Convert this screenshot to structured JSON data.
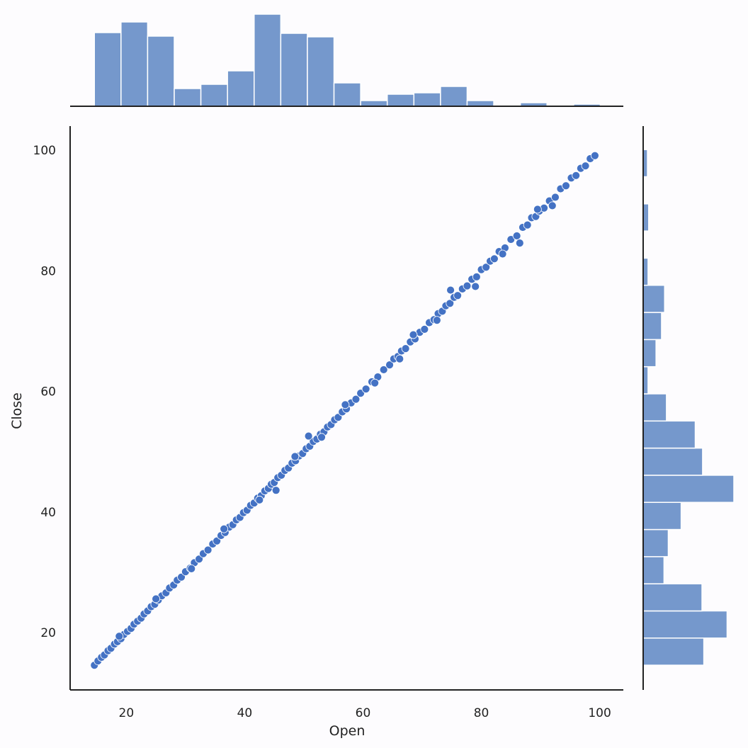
{
  "chart_data": {
    "type": "scatter",
    "subtype": "jointplot",
    "xlabel": "Open",
    "ylabel": "Close",
    "xlim": [
      10.5,
      104
    ],
    "ylim": [
      10.5,
      104
    ],
    "xticks": [
      20,
      40,
      60,
      80,
      100
    ],
    "yticks": [
      20,
      40,
      60,
      80,
      100
    ],
    "grid": false,
    "colors": {
      "points": "#4472c4",
      "point_edge": "#ffffff",
      "bars": "#7598cc",
      "bar_edge": "#ffffff",
      "axis": "#222222",
      "background": "#fdfcfe"
    },
    "series": [
      {
        "x": [
          14.6,
          15.2,
          15.8,
          16.3,
          16.9,
          17.4,
          18.0,
          18.5,
          19.1,
          19.6,
          20.2,
          20.8,
          21.3,
          21.9,
          22.5,
          23.0,
          23.6,
          24.2,
          24.8,
          25.4,
          26.0,
          26.7,
          27.3,
          28.0,
          28.6,
          29.3,
          30.0,
          30.8,
          31.5,
          32.3,
          33.0,
          33.8,
          34.6,
          35.3,
          36.0,
          36.7,
          37.4,
          38.0,
          38.6,
          39.2,
          39.8,
          40.4,
          41.0,
          41.6,
          42.2,
          42.8,
          43.4,
          44.0,
          44.5,
          45.0,
          45.6,
          46.2,
          46.8,
          47.4,
          48.0,
          48.6,
          49.2,
          49.8,
          50.4,
          51.0,
          51.6,
          52.2,
          52.8,
          53.4,
          54.0,
          54.6,
          55.2,
          55.8,
          56.5,
          57.2,
          58.0,
          58.8,
          59.6,
          60.5,
          61.5,
          62.5,
          63.5,
          64.5,
          65.2,
          65.9,
          66.5,
          67.2,
          68.0,
          68.8,
          69.6,
          70.4,
          71.2,
          72.0,
          72.7,
          73.4,
          74.0,
          74.7,
          75.4,
          76.0,
          76.8,
          77.6,
          78.4,
          79.2,
          80.0,
          80.8,
          81.5,
          82.2,
          83.0,
          84.0,
          85.0,
          86.0,
          87.0,
          87.8,
          88.5,
          89.2,
          89.8,
          90.6,
          91.5,
          92.5,
          93.4,
          94.3,
          95.2,
          96.0,
          96.8,
          97.6,
          98.4,
          99.2,
          18.8,
          25.0,
          31.0,
          36.5,
          42.5,
          48.5,
          53.0,
          57.0,
          62.0,
          68.5,
          72.5,
          74.8,
          79.0,
          83.6,
          86.5,
          89.5,
          92.0,
          45.3,
          50.8,
          66.2
        ],
        "y": [
          14.6,
          15.3,
          15.9,
          16.3,
          17.0,
          17.4,
          18.1,
          18.5,
          19.0,
          19.7,
          20.2,
          20.7,
          21.4,
          21.9,
          22.4,
          23.1,
          23.6,
          24.3,
          24.7,
          25.4,
          26.1,
          26.6,
          27.4,
          27.9,
          28.7,
          29.2,
          30.1,
          30.7,
          31.6,
          32.2,
          33.1,
          33.7,
          34.7,
          35.2,
          36.1,
          36.6,
          37.5,
          37.9,
          38.7,
          39.1,
          39.9,
          40.3,
          41.1,
          41.5,
          42.3,
          42.7,
          43.5,
          43.9,
          44.6,
          44.9,
          45.7,
          46.1,
          46.9,
          47.3,
          48.1,
          48.5,
          49.3,
          49.7,
          50.5,
          50.9,
          51.7,
          52.1,
          52.9,
          53.3,
          54.1,
          54.5,
          55.3,
          55.7,
          56.6,
          57.1,
          58.1,
          58.7,
          59.7,
          60.4,
          61.6,
          62.4,
          63.6,
          64.4,
          65.4,
          65.8,
          66.7,
          67.1,
          68.2,
          68.7,
          69.8,
          70.3,
          71.4,
          71.9,
          72.9,
          73.3,
          74.2,
          74.6,
          75.6,
          75.9,
          77.0,
          77.5,
          78.6,
          79.0,
          80.2,
          80.6,
          81.6,
          82.0,
          83.2,
          83.8,
          85.2,
          85.8,
          87.2,
          87.6,
          88.8,
          89.0,
          89.9,
          90.4,
          91.6,
          92.2,
          93.6,
          94.1,
          95.4,
          95.8,
          97.0,
          97.4,
          98.6,
          99.1,
          19.4,
          25.6,
          30.6,
          37.2,
          42.0,
          49.2,
          52.4,
          57.8,
          61.4,
          69.4,
          71.8,
          76.8,
          77.4,
          82.8,
          84.6,
          90.2,
          90.8,
          43.6,
          52.6,
          65.4
        ]
      }
    ],
    "top_histogram": {
      "bin_edges": [
        14.6,
        19.1,
        23.6,
        28.1,
        32.6,
        37.1,
        41.6,
        46.1,
        50.6,
        55.1,
        59.6,
        64.1,
        68.6,
        73.1,
        77.6,
        82.1,
        86.6,
        91.1,
        95.6,
        100.1
      ],
      "counts": [
        104,
        119,
        99,
        25,
        31,
        50,
        130,
        103,
        98,
        33,
        8,
        17,
        19,
        28,
        8,
        1,
        5,
        1,
        3
      ]
    },
    "right_histogram": {
      "bin_edges": [
        14.6,
        19.1,
        23.6,
        28.1,
        32.6,
        37.1,
        41.6,
        46.1,
        50.6,
        55.1,
        59.6,
        64.1,
        68.6,
        73.1,
        77.6,
        82.1,
        86.6,
        91.1,
        95.6,
        100.1
      ],
      "counts": [
        99,
        137,
        96,
        34,
        41,
        62,
        148,
        97,
        85,
        38,
        8,
        21,
        30,
        35,
        8,
        1,
        9,
        1,
        7
      ]
    }
  }
}
